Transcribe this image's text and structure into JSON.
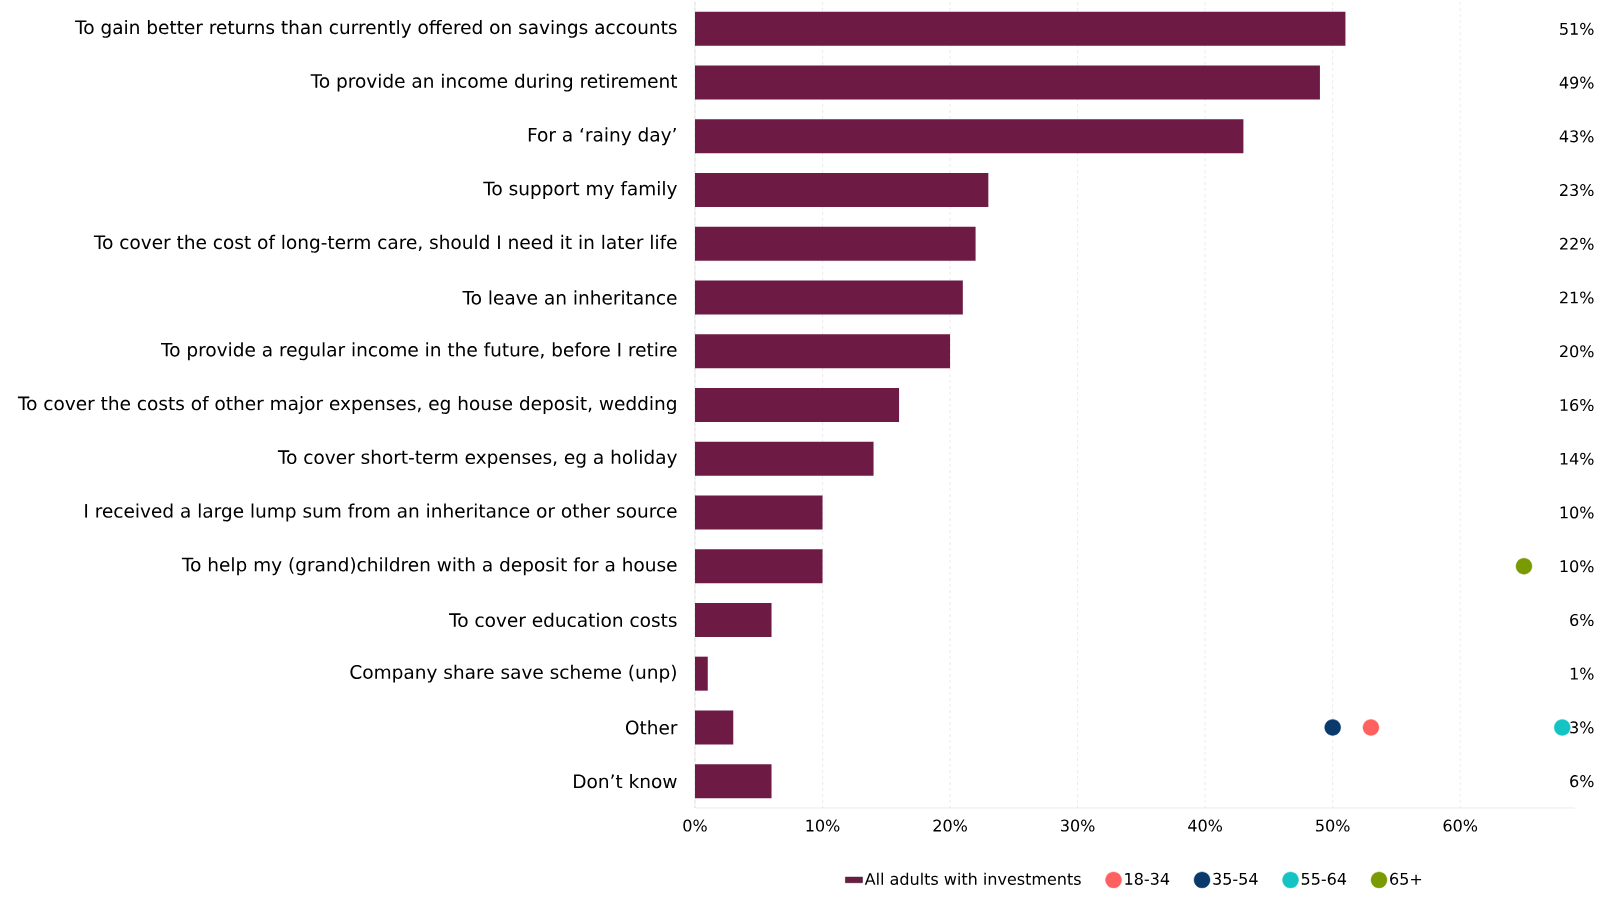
{
  "chart_data": {
    "type": "bar",
    "orientation": "horizontal",
    "categories": [
      "To gain better returns than currently offered on savings accounts",
      "To provide an income during retirement",
      "For a ‘rainy day’",
      "To support my family",
      "To cover the cost of long-term care, should I need it in later life",
      "To leave an inheritance",
      "To provide a regular income in the future, before I retire",
      "To cover the costs of other major expenses, eg house deposit, wedding",
      "To cover short-term expenses, eg a holiday",
      "I received a large lump sum from an inheritance or other source",
      "To help my (grand)children with a deposit for a house",
      "To cover education costs",
      "Company share save scheme (unp)",
      "Other",
      "Don’t know"
    ],
    "series": [
      {
        "name": "All adults with investments",
        "type": "bar",
        "color": "#6d1a44",
        "values": [
          51,
          49,
          43,
          23,
          22,
          21,
          20,
          16,
          14,
          10,
          10,
          6,
          1,
          3,
          6
        ],
        "value_labels": [
          "51%",
          "49%",
          "43%",
          "23%",
          "22%",
          "21%",
          "20%",
          "16%",
          "14%",
          "10%",
          "10%",
          "6%",
          "1%",
          "3%",
          "6%"
        ]
      },
      {
        "name": "18-34",
        "type": "scatter",
        "color": "#ff6161",
        "values": [
          null,
          null,
          null,
          null,
          null,
          null,
          null,
          null,
          null,
          null,
          null,
          null,
          null,
          53,
          null
        ]
      },
      {
        "name": "35-54",
        "type": "scatter",
        "color": "#0a3a6b",
        "values": [
          null,
          null,
          null,
          null,
          null,
          null,
          null,
          null,
          null,
          null,
          null,
          null,
          null,
          50,
          null
        ]
      },
      {
        "name": "55-64",
        "type": "scatter",
        "color": "#14c4c4",
        "values": [
          null,
          null,
          null,
          null,
          null,
          null,
          null,
          null,
          null,
          null,
          null,
          null,
          null,
          68,
          null
        ]
      },
      {
        "name": "65+",
        "type": "scatter",
        "color": "#7a9a01",
        "values": [
          null,
          null,
          null,
          null,
          null,
          null,
          null,
          null,
          null,
          null,
          65,
          null,
          null,
          null,
          null
        ]
      }
    ],
    "xlim": [
      0,
      69
    ],
    "xticks": [
      {
        "value": 0,
        "label": "0%"
      },
      {
        "value": 10,
        "label": "10%"
      },
      {
        "value": 20,
        "label": "20%"
      },
      {
        "value": 30,
        "label": "30%"
      },
      {
        "value": 40,
        "label": "40%"
      },
      {
        "value": 50,
        "label": "50%"
      },
      {
        "value": 60,
        "label": "60%"
      }
    ],
    "grid": "x",
    "legend": "bottom",
    "marker": "circle"
  }
}
